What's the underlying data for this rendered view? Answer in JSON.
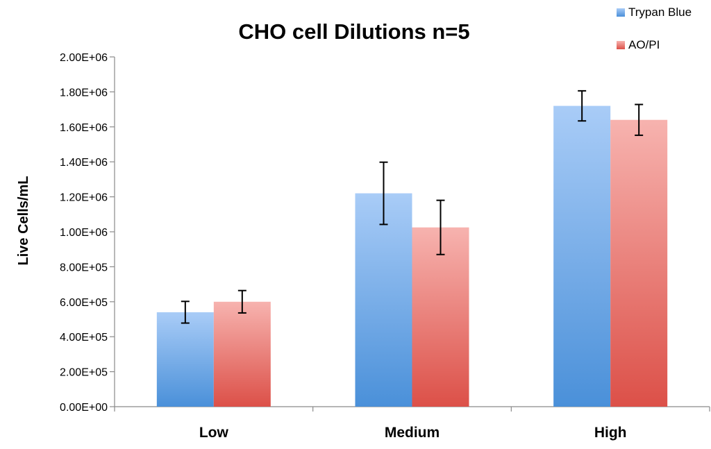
{
  "chart_data": {
    "type": "bar",
    "title": "CHO cell Dilutions n=5",
    "xlabel": "",
    "ylabel": "Live Cells/mL",
    "categories": [
      "Low",
      "Medium",
      "High"
    ],
    "ylim": [
      0,
      2000000
    ],
    "yticks": [
      0,
      200000,
      400000,
      600000,
      800000,
      1000000,
      1200000,
      1400000,
      1600000,
      1800000,
      2000000
    ],
    "ytick_labels": [
      "0.00E+00",
      "2.00E+05",
      "4.00E+05",
      "6.00E+05",
      "8.00E+05",
      "1.00E+06",
      "1.20E+06",
      "1.40E+06",
      "1.60E+06",
      "1.80E+06",
      "2.00E+06"
    ],
    "grid": false,
    "legend_position": "top-right",
    "series": [
      {
        "name": "Trypan Blue",
        "values": [
          540000,
          1220000,
          1720000
        ],
        "errors": [
          62000,
          178000,
          86000
        ],
        "color_top": "#a9ccf7",
        "color_bottom": "#4a90d9"
      },
      {
        "name": "AO/PI",
        "values": [
          600000,
          1025000,
          1640000
        ],
        "errors": [
          64000,
          155000,
          88000
        ],
        "color_top": "#f7b3af",
        "color_bottom": "#dc5048"
      }
    ]
  }
}
